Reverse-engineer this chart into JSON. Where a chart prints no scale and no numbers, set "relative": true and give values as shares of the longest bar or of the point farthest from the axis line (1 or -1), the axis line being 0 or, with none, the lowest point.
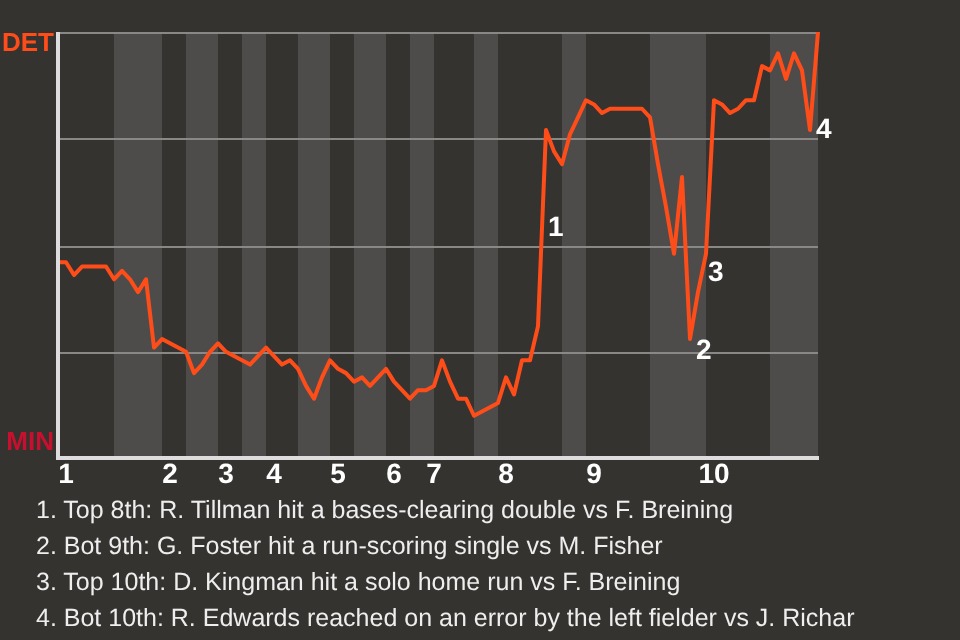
{
  "chart_data": {
    "type": "line",
    "relative": true,
    "categories": [
      null,
      "1",
      null,
      null,
      null,
      null,
      null,
      null,
      null,
      null,
      null,
      null,
      null,
      null,
      "2",
      null,
      null,
      null,
      null,
      null,
      null,
      "3",
      null,
      null,
      null,
      null,
      null,
      "4",
      null,
      null,
      null,
      null,
      null,
      null,
      null,
      "5",
      null,
      null,
      null,
      null,
      null,
      null,
      "6",
      null,
      null,
      null,
      null,
      "7",
      null,
      null,
      null,
      null,
      null,
      null,
      null,
      null,
      "8",
      null,
      null,
      null,
      null,
      null,
      null,
      null,
      null,
      null,
      null,
      "9",
      null,
      null,
      null,
      null,
      null,
      null,
      null,
      null,
      null,
      null,
      null,
      null,
      null,
      null,
      "10",
      null,
      null,
      null,
      null,
      null,
      null,
      null,
      null,
      null,
      null,
      null,
      null,
      null
    ],
    "series": [
      {
        "color": "#ff4d1a",
        "values": [
          0.46,
          0.46,
          0.43,
          0.45,
          0.45,
          0.45,
          0.45,
          0.42,
          0.44,
          0.42,
          0.39,
          0.42,
          0.26,
          0.28,
          0.27,
          0.26,
          0.25,
          0.2,
          0.22,
          0.25,
          0.27,
          0.25,
          0.24,
          0.23,
          0.22,
          0.24,
          0.26,
          0.24,
          0.22,
          0.23,
          0.21,
          0.17,
          0.14,
          0.19,
          0.23,
          0.21,
          0.2,
          0.18,
          0.19,
          0.17,
          0.19,
          0.21,
          0.18,
          0.16,
          0.14,
          0.16,
          0.16,
          0.17,
          0.23,
          0.18,
          0.14,
          0.14,
          0.1,
          0.11,
          0.12,
          0.13,
          0.19,
          0.15,
          0.23,
          0.23,
          0.31,
          0.77,
          0.72,
          0.69,
          0.76,
          0.8,
          0.84,
          0.83,
          0.81,
          0.82,
          0.82,
          0.82,
          0.82,
          0.82,
          0.8,
          0.69,
          0.59,
          0.48,
          0.66,
          0.28,
          0.39,
          0.48,
          0.84,
          0.83,
          0.81,
          0.82,
          0.84,
          0.84,
          0.92,
          0.91,
          0.95,
          0.89,
          0.95,
          0.91,
          0.77,
          1.0
        ]
      }
    ],
    "marker": "none",
    "grid": "y",
    "annotations": [
      "DET",
      "MIN",
      "1",
      "2",
      "3",
      "4",
      "1. Top 8th: R. Tillman hit a bases-clearing double vs F. Breining",
      "2. Bot 9th: G. Foster hit a run-scoring single vs M. Fisher",
      "3. Top 10th: D. Kingman hit a solo home run vs F. Breining",
      "4. Bot 10th: R. Edwards reached on an error by the left fielder vs J. Richar"
    ]
  }
}
